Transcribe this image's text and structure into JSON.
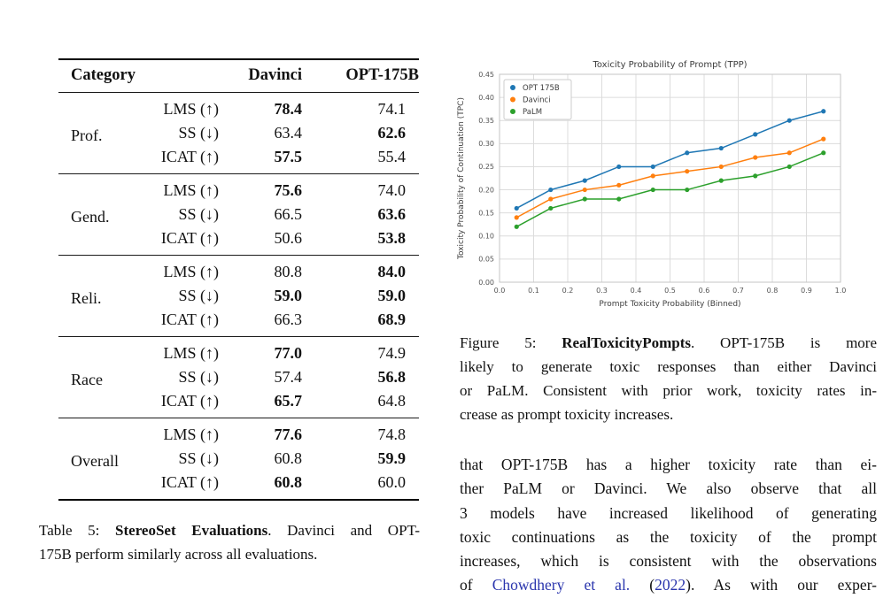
{
  "table": {
    "headers": {
      "category": "Category",
      "davinci": "Davinci",
      "opt": "OPT-175B"
    },
    "groups": [
      {
        "category": "Prof.",
        "rows": [
          {
            "metric": "LMS (↑)",
            "davinci": "78.4",
            "davinci_bold": true,
            "opt": "74.1",
            "opt_bold": false
          },
          {
            "metric": "SS (↓)",
            "davinci": "63.4",
            "davinci_bold": false,
            "opt": "62.6",
            "opt_bold": true
          },
          {
            "metric": "ICAT (↑)",
            "davinci": "57.5",
            "davinci_bold": true,
            "opt": "55.4",
            "opt_bold": false
          }
        ]
      },
      {
        "category": "Gend.",
        "rows": [
          {
            "metric": "LMS (↑)",
            "davinci": "75.6",
            "davinci_bold": true,
            "opt": "74.0",
            "opt_bold": false
          },
          {
            "metric": "SS (↓)",
            "davinci": "66.5",
            "davinci_bold": false,
            "opt": "63.6",
            "opt_bold": true
          },
          {
            "metric": "ICAT (↑)",
            "davinci": "50.6",
            "davinci_bold": false,
            "opt": "53.8",
            "opt_bold": true
          }
        ]
      },
      {
        "category": "Reli.",
        "rows": [
          {
            "metric": "LMS (↑)",
            "davinci": "80.8",
            "davinci_bold": false,
            "opt": "84.0",
            "opt_bold": true
          },
          {
            "metric": "SS (↓)",
            "davinci": "59.0",
            "davinci_bold": true,
            "opt": "59.0",
            "opt_bold": true
          },
          {
            "metric": "ICAT (↑)",
            "davinci": "66.3",
            "davinci_bold": false,
            "opt": "68.9",
            "opt_bold": true
          }
        ]
      },
      {
        "category": "Race",
        "rows": [
          {
            "metric": "LMS (↑)",
            "davinci": "77.0",
            "davinci_bold": true,
            "opt": "74.9",
            "opt_bold": false
          },
          {
            "metric": "SS (↓)",
            "davinci": "57.4",
            "davinci_bold": false,
            "opt": "56.8",
            "opt_bold": true
          },
          {
            "metric": "ICAT (↑)",
            "davinci": "65.7",
            "davinci_bold": true,
            "opt": "64.8",
            "opt_bold": false
          }
        ]
      },
      {
        "category": "Overall",
        "rows": [
          {
            "metric": "LMS (↑)",
            "davinci": "77.6",
            "davinci_bold": true,
            "opt": "74.8",
            "opt_bold": false
          },
          {
            "metric": "SS (↓)",
            "davinci": "60.8",
            "davinci_bold": false,
            "opt": "59.9",
            "opt_bold": true
          },
          {
            "metric": "ICAT (↑)",
            "davinci": "60.8",
            "davinci_bold": true,
            "opt": "60.0",
            "opt_bold": false
          }
        ]
      }
    ],
    "caption": {
      "line1_pre": "Table 5: ",
      "line1_bold": "StereoSet Evaluations",
      "line1_post": ".  Davinci and OPT-",
      "line2": "175B perform similarly across all evaluations."
    }
  },
  "chart_data": {
    "type": "line",
    "title": "Toxicity Probability of Prompt (TPP)",
    "xlabel": "Prompt Toxicity Probability (Binned)",
    "ylabel": "Toxicity Probability of Continuation (TPC)",
    "xlim": [
      0.0,
      1.0
    ],
    "ylim": [
      0.0,
      0.45
    ],
    "grid": true,
    "legend_position": "upper left",
    "xticks": [
      "0.0",
      "0.1",
      "0.2",
      "0.3",
      "0.4",
      "0.5",
      "0.6",
      "0.7",
      "0.8",
      "0.9",
      "1.0"
    ],
    "yticks": [
      "0.00",
      "0.05",
      "0.10",
      "0.15",
      "0.20",
      "0.25",
      "0.30",
      "0.35",
      "0.40",
      "0.45"
    ],
    "x": [
      0.05,
      0.15,
      0.25,
      0.35,
      0.45,
      0.55,
      0.65,
      0.75,
      0.85,
      0.95
    ],
    "series": [
      {
        "name": "OPT 175B",
        "color": "#1f77b4",
        "values": [
          0.16,
          0.2,
          0.22,
          0.25,
          0.25,
          0.28,
          0.29,
          0.32,
          0.35,
          0.37
        ]
      },
      {
        "name": "Davinci",
        "color": "#ff7f0e",
        "values": [
          0.14,
          0.18,
          0.2,
          0.21,
          0.23,
          0.24,
          0.25,
          0.27,
          0.28,
          0.31
        ]
      },
      {
        "name": "PaLM",
        "color": "#2ca02c",
        "values": [
          0.12,
          0.16,
          0.18,
          0.18,
          0.2,
          0.2,
          0.22,
          0.23,
          0.25,
          0.28
        ]
      }
    ]
  },
  "figure_caption": {
    "line1_pre": "Figure 5: ",
    "line1_bold": "RealToxicityPompts",
    "line1_post": ".  OPT-175B is more",
    "line2": "likely to generate toxic responses than either Davinci",
    "line3": "or PaLM. Consistent with prior work, toxicity rates in-",
    "line4": "crease as prompt toxicity increases."
  },
  "body_text": {
    "lines": [
      "that OPT-175B has a higher toxicity rate than ei-",
      "ther PaLM or Davinci.  We also observe that all",
      "3 models have increased likelihood of generating",
      "toxic continuations as the toxicity of the prompt",
      "increases, which is consistent with the observations"
    ],
    "cite_line": {
      "pre": "of ",
      "cite_authors": "Chowdhery et al.",
      "mid": " (",
      "cite_year": "2022",
      "post": ").  As with our exper-"
    }
  }
}
